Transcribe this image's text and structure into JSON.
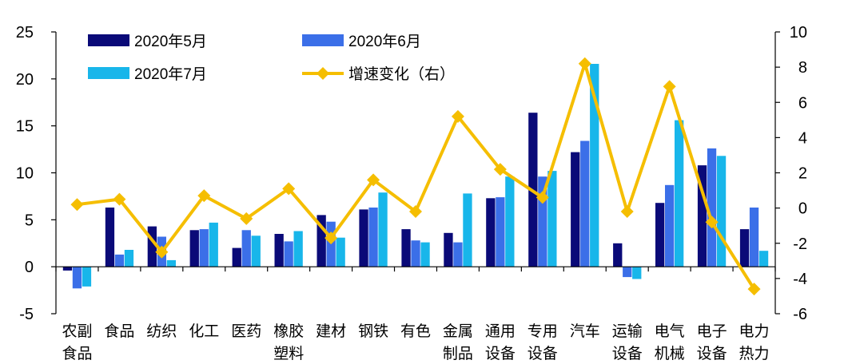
{
  "chart_data": {
    "type": "bar",
    "categories": [
      [
        "农副",
        "食品"
      ],
      [
        "食品"
      ],
      [
        "纺织"
      ],
      [
        "化工"
      ],
      [
        "医药"
      ],
      [
        "橡胶",
        "塑料"
      ],
      [
        "建材"
      ],
      [
        "钢铁"
      ],
      [
        "有色"
      ],
      [
        "金属",
        "制品"
      ],
      [
        "通用",
        "设备"
      ],
      [
        "专用",
        "设备"
      ],
      [
        "汽车"
      ],
      [
        "运输",
        "设备"
      ],
      [
        "电气",
        "机械"
      ],
      [
        "电子",
        "设备"
      ],
      [
        "电力",
        "热力"
      ]
    ],
    "series": [
      {
        "name": "2020年5月",
        "color": "#0a0a78",
        "values": [
          -0.4,
          6.3,
          4.3,
          3.9,
          2.0,
          3.5,
          5.5,
          6.1,
          4.0,
          3.6,
          7.3,
          16.4,
          12.2,
          2.5,
          6.8,
          10.8,
          4.0
        ]
      },
      {
        "name": "2020年6月",
        "color": "#3b6fe8",
        "values": [
          -2.3,
          1.3,
          3.2,
          4.0,
          3.9,
          2.7,
          4.8,
          6.3,
          2.8,
          2.6,
          7.4,
          9.6,
          13.4,
          -1.1,
          8.7,
          12.6,
          6.3
        ]
      },
      {
        "name": "2020年7月",
        "color": "#18b6ea",
        "values": [
          -2.1,
          1.8,
          0.7,
          4.7,
          3.3,
          3.8,
          3.1,
          7.9,
          2.6,
          7.8,
          9.6,
          10.2,
          21.6,
          -1.3,
          15.6,
          11.8,
          1.7
        ]
      },
      {
        "name": "增速变化（右）",
        "type": "line",
        "axis": "right",
        "color": "#f5be00",
        "values": [
          0.2,
          0.5,
          -2.5,
          0.7,
          -0.6,
          1.1,
          -1.7,
          1.6,
          -0.2,
          5.2,
          2.2,
          0.6,
          8.2,
          -0.2,
          6.9,
          -0.8,
          -4.6
        ]
      }
    ],
    "ylim": [
      -5,
      25
    ],
    "yticks": [
      "-5",
      "0",
      "5",
      "10",
      "15",
      "20",
      "25"
    ],
    "y2lim": [
      -6,
      10
    ],
    "y2ticks": [
      "-6",
      "-4",
      "-2",
      "0",
      "2",
      "4",
      "6",
      "8",
      "10"
    ],
    "legend_position": "top-left",
    "grid": false
  }
}
